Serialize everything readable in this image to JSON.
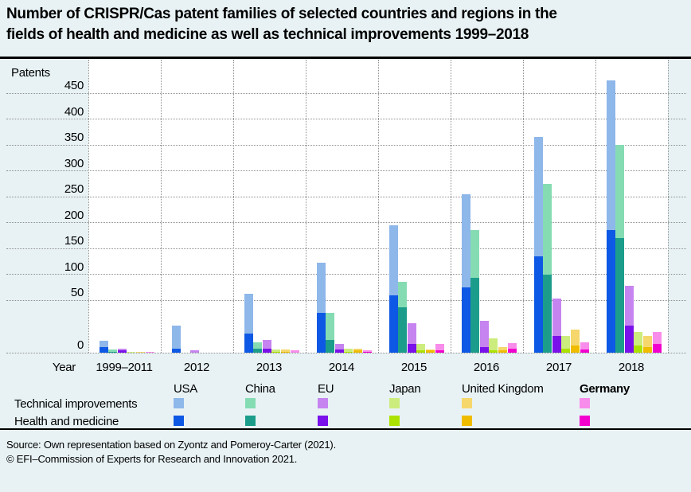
{
  "header": {
    "title_lines": [
      "Number of CRISPR/Cas patent families of selected countries and regions in the",
      "fields of health and medicine as well as technical improvements 1999–2018"
    ]
  },
  "chart_data": {
    "type": "bar",
    "stacked": true,
    "title": "Number of CRISPR/Cas patent families of selected countries and regions in the fields of health and medicine as well as technical improvements 1999–2018",
    "ylabel": "Patents",
    "xlabel": "Year",
    "grid": "dotted",
    "legend_position": "bottom",
    "yticks": [
      450,
      400,
      350,
      300,
      250,
      200,
      150,
      100,
      50,
      0
    ],
    "ylim": [
      0,
      500
    ],
    "axis_note": "0–50 segment of the y-axis is drawn at double scale (as in original figure)",
    "categories": [
      "1999–2011",
      "2012",
      "2013",
      "2014",
      "2015",
      "2016",
      "2017",
      "2018"
    ],
    "legend": {
      "row_labels": [
        "Technical improvements",
        "Health and medicine"
      ]
    },
    "countries": [
      {
        "name": "USA",
        "bold": false,
        "color_tech": "#8EB7EA",
        "color_health": "#0D58E4",
        "technical_improvements": [
          6,
          22,
          45,
          84,
          135,
          180,
          230,
          290
        ],
        "health_and_medicine": [
          5,
          4,
          18,
          38,
          60,
          75,
          135,
          185
        ]
      },
      {
        "name": "China",
        "bold": false,
        "color_tech": "#85DCB3",
        "color_health": "#1C9D8B",
        "technical_improvements": [
          2,
          0,
          6,
          26,
          42,
          92,
          175,
          180
        ],
        "health_and_medicine": [
          1,
          0,
          4,
          12,
          43,
          93,
          100,
          170
        ]
      },
      {
        "name": "EU",
        "bold": false,
        "color_tech": "#C684F0",
        "color_health": "#7A10EA",
        "technical_improvements": [
          2,
          2,
          8,
          5,
          20,
          25,
          37,
          52
        ],
        "health_and_medicine": [
          2,
          0,
          4,
          3,
          8,
          5,
          16,
          26
        ]
      },
      {
        "name": "Japan",
        "bold": false,
        "color_tech": "#CCEC7D",
        "color_health": "#ACE200",
        "technical_improvements": [
          1,
          0,
          2,
          3,
          6,
          12,
          12,
          13
        ],
        "health_and_medicine": [
          0,
          0,
          1,
          1,
          2,
          2,
          4,
          7
        ]
      },
      {
        "name": "United Kingdom",
        "bold": false,
        "color_tech": "#F5D76C",
        "color_health": "#F0BC00",
        "technical_improvements": [
          1,
          0,
          2,
          2,
          1,
          3,
          15,
          11
        ],
        "health_and_medicine": [
          0,
          0,
          1,
          2,
          2,
          2,
          7,
          5
        ]
      },
      {
        "name": "Germany",
        "bold": true,
        "color_tech": "#F88CEA",
        "color_health": "#F200CE",
        "technical_improvements": [
          1,
          0,
          2,
          1,
          6,
          5,
          7,
          12
        ],
        "health_and_medicine": [
          0,
          0,
          0,
          1,
          2,
          4,
          3,
          8
        ]
      }
    ]
  },
  "footer": {
    "source_line": "Source: Own representation based on Zyontz and Pomeroy-Carter (2021).",
    "copyright_line": "© EFI–Commission of Experts for Research and Innovation 2021."
  }
}
